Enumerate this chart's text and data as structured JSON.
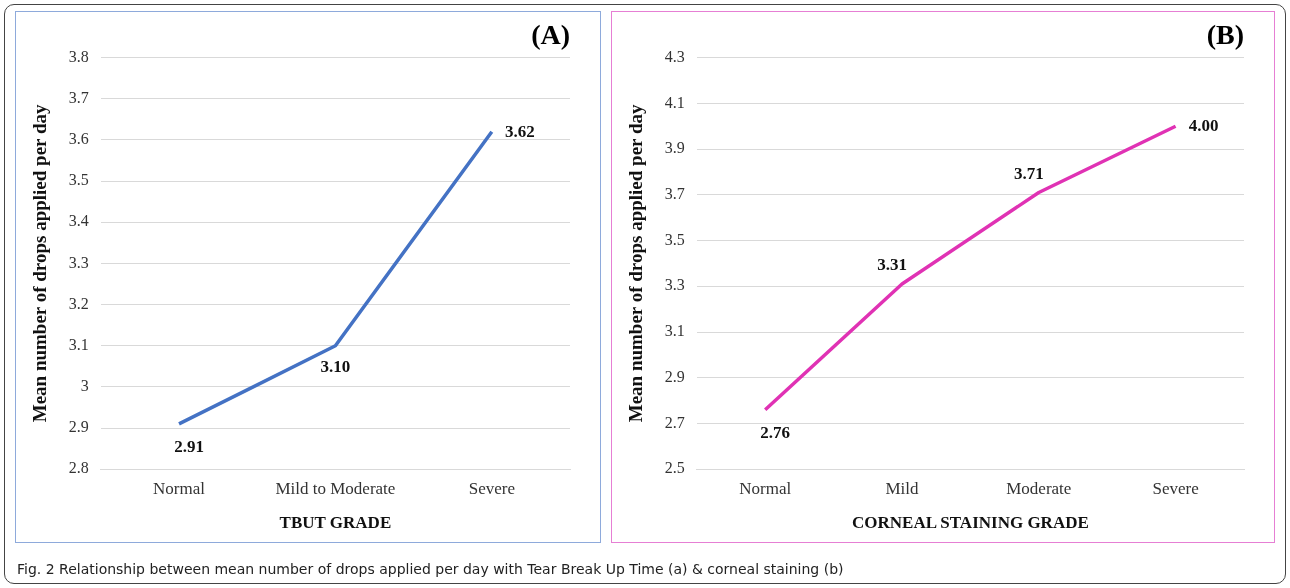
{
  "chart_data": [
    {
      "type": "line",
      "title": "(A)",
      "xlabel": "TBUT GRADE",
      "ylabel": "Mean number of drops applied per day",
      "categories": [
        "Normal",
        "Mild to Moderate",
        "Severe"
      ],
      "series": [
        {
          "color": "#4472c4",
          "values": [
            2.91,
            3.1,
            3.62
          ],
          "value_labels": [
            "2.91",
            "3.10",
            "3.62"
          ]
        }
      ],
      "ylim": [
        2.8,
        3.8
      ],
      "yticks": [
        2.8,
        2.9,
        3,
        3.1,
        3.2,
        3.3,
        3.4,
        3.5,
        3.6,
        3.7,
        3.8
      ],
      "grid": "y",
      "marker": "none",
      "line_style": "solid",
      "annotations": [
        "Fig. 2 Relationship between mean number of drops applied per day with Tear Break Up Time (a) & corneal staining (b)"
      ]
    },
    {
      "type": "line",
      "title": "(B)",
      "xlabel": "CORNEAL STAINING GRADE",
      "ylabel": "Mean number of drops applied per day",
      "categories": [
        "Normal",
        "Mild",
        "Moderate",
        "Severe"
      ],
      "series": [
        {
          "color": "#e032b4",
          "values": [
            2.76,
            3.31,
            3.71,
            4.0
          ],
          "value_labels": [
            "2.76",
            "3.31",
            "3.71",
            "4.00"
          ]
        }
      ],
      "ylim": [
        2.5,
        4.3
      ],
      "yticks": [
        2.5,
        2.7,
        2.9,
        3.1,
        3.3,
        3.5,
        3.7,
        3.9,
        4.1,
        4.3
      ],
      "grid": "y",
      "marker": "none",
      "line_style": "solid"
    }
  ]
}
